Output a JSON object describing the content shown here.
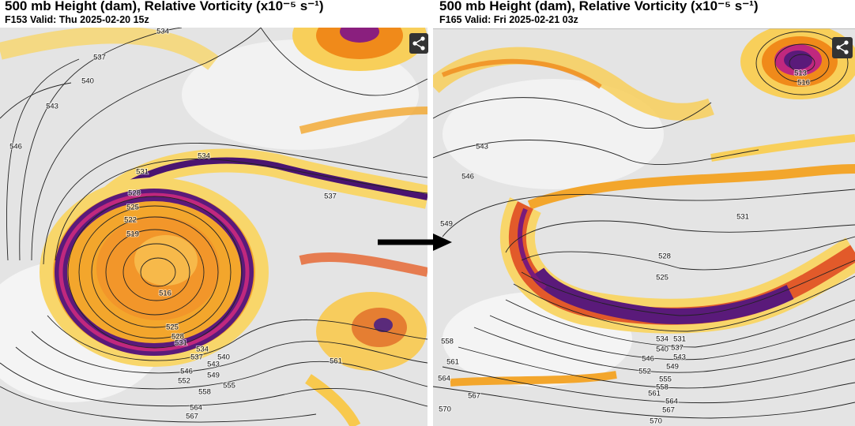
{
  "panels": [
    {
      "title": "500 mb Height (dam), Relative Vorticity (x10⁻⁵ s⁻¹)",
      "subtitle": "F153 Valid: Thu 2025-02-20 15z",
      "contour_labels": [
        "534",
        "537",
        "540",
        "543",
        "546",
        "534",
        "531",
        "528",
        "525",
        "522",
        "519",
        "537",
        "516",
        "525",
        "528",
        "531",
        "534",
        "537",
        "540",
        "543",
        "546",
        "549",
        "552",
        "555",
        "558",
        "561",
        "564",
        "567"
      ]
    },
    {
      "title": "500 mb Height (dam), Relative Vorticity (x10⁻⁵ s⁻¹)",
      "subtitle": "F165 Valid: Fri 2025-02-21 03z",
      "contour_labels": [
        "543",
        "546",
        "549",
        "531",
        "528",
        "525",
        "534",
        "531",
        "540",
        "537",
        "546",
        "543",
        "552",
        "549",
        "555",
        "558",
        "561",
        "564",
        "567",
        "570",
        "558",
        "561",
        "564",
        "567",
        "570",
        "513",
        "516"
      ]
    }
  ]
}
